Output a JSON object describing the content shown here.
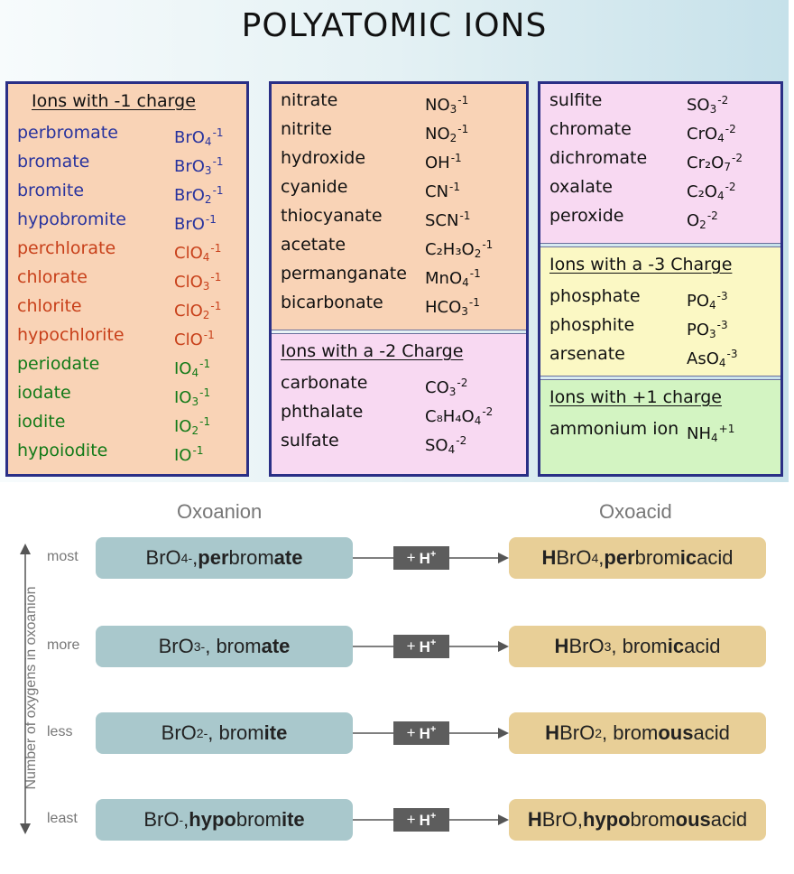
{
  "title": "POLYATOMIC IONS",
  "panels": [
    {
      "bg": "#f9d3b6",
      "sections": [
        {
          "header": "Ions with -1 charge",
          "ions": [
            {
              "name": "perbromate",
              "formula": [
                "BrO",
                "4",
                "-1"
              ],
              "color": "blue"
            },
            {
              "name": "bromate",
              "formula": [
                "BrO",
                "3",
                "-1"
              ],
              "color": "blue"
            },
            {
              "name": "bromite",
              "formula": [
                "BrO",
                "2",
                "-1"
              ],
              "color": "blue"
            },
            {
              "name": "hypobromite",
              "formula": [
                "BrO",
                "",
                "-1"
              ],
              "color": "blue"
            },
            {
              "name": "perchlorate",
              "formula": [
                "ClO",
                "4",
                "-1"
              ],
              "color": "orange"
            },
            {
              "name": "chlorate",
              "formula": [
                "ClO",
                "3",
                "-1"
              ],
              "color": "orange"
            },
            {
              "name": "chlorite",
              "formula": [
                "ClO",
                "2",
                "-1"
              ],
              "color": "orange"
            },
            {
              "name": "hypochlorite",
              "formula": [
                "ClO",
                "",
                "-1"
              ],
              "color": "orange"
            },
            {
              "name": "periodate",
              "formula": [
                "IO",
                "4",
                "-1"
              ],
              "color": "green"
            },
            {
              "name": "iodate",
              "formula": [
                "IO",
                "3",
                "-1"
              ],
              "color": "green"
            },
            {
              "name": "iodite",
              "formula": [
                "IO",
                "2",
                "-1"
              ],
              "color": "green"
            },
            {
              "name": "hypoiodite",
              "formula": [
                "IO",
                "",
                "-1"
              ],
              "color": "green"
            }
          ]
        }
      ]
    },
    {
      "bg_top": "#f9d3b6",
      "bg_bottom": "#f8d9f2",
      "sections": [
        {
          "header": "",
          "ions": [
            {
              "name": "nitrate",
              "formula": [
                "NO",
                "3",
                "-1"
              ],
              "color": "black"
            },
            {
              "name": "nitrite",
              "formula": [
                "NO",
                "2",
                "-1"
              ],
              "color": "black"
            },
            {
              "name": "hydroxide",
              "formula": [
                "OH",
                "",
                "-1"
              ],
              "color": "black"
            },
            {
              "name": "cyanide",
              "formula": [
                "CN",
                "",
                "-1"
              ],
              "color": "black"
            },
            {
              "name": "thiocyanate",
              "formula": [
                "SCN",
                "",
                "-1"
              ],
              "color": "black"
            },
            {
              "name": "acetate",
              "formula": [
                "C₂H₃O",
                "2",
                "-1"
              ],
              "color": "black"
            },
            {
              "name": "permanganate",
              "formula": [
                "MnO",
                "4",
                "-1"
              ],
              "color": "black"
            },
            {
              "name": "bicarbonate",
              "formula": [
                "HCO",
                "3",
                "-1"
              ],
              "color": "black"
            }
          ]
        },
        {
          "header": "Ions with a -2 Charge",
          "ions": [
            {
              "name": "carbonate",
              "formula": [
                "CO",
                "3",
                "-2"
              ],
              "color": "black"
            },
            {
              "name": "phthalate",
              "formula": [
                "C₈H₄O",
                "4",
                "-2"
              ],
              "color": "black"
            },
            {
              "name": "sulfate",
              "formula": [
                "SO",
                "4",
                "-2"
              ],
              "color": "black"
            }
          ]
        }
      ]
    },
    {
      "sections": [
        {
          "header": "",
          "bg": "#f8d9f2",
          "ions": [
            {
              "name": "sulfite",
              "formula": [
                "SO",
                "3",
                "-2"
              ],
              "color": "black"
            },
            {
              "name": "chromate",
              "formula": [
                "CrO",
                "4",
                "-2"
              ],
              "color": "black"
            },
            {
              "name": "dichromate",
              "formula": [
                "Cr₂O",
                "7",
                "-2"
              ],
              "color": "black"
            },
            {
              "name": "oxalate",
              "formula": [
                "C₂O",
                "4",
                "-2"
              ],
              "color": "black"
            },
            {
              "name": "peroxide",
              "formula": [
                "O",
                "2",
                "-2"
              ],
              "color": "black"
            }
          ]
        },
        {
          "header": "Ions with a -3 Charge",
          "bg": "#fbf8c4",
          "ions": [
            {
              "name": "phosphate",
              "formula": [
                "PO",
                "4",
                "-3"
              ],
              "color": "black"
            },
            {
              "name": "phosphite",
              "formula": [
                "PO",
                "3",
                "-3"
              ],
              "color": "black"
            },
            {
              "name": "arsenate",
              "formula": [
                "AsO",
                "4",
                "-3"
              ],
              "color": "black"
            }
          ]
        },
        {
          "header": "Ions with +1 charge",
          "bg": "#d3f4c2",
          "ions": [
            {
              "name": "ammonium ion",
              "formula": [
                "NH",
                "4",
                "+1"
              ],
              "color": "black"
            }
          ]
        }
      ]
    }
  ],
  "colors": {
    "blue": "#28339e",
    "orange": "#c8401a",
    "green": "#127a18",
    "black": "#111111",
    "panel_border": "#2a2f86"
  },
  "diagram": {
    "left_header": "Oxoanion",
    "right_header": "Oxoacid",
    "axis_label": "Number of oxygens in oxoanion",
    "proton_label": "+ H",
    "proton_sup": "+",
    "colors": {
      "anion": "#a9c8cc",
      "acid": "#e8cf97",
      "proton": "#5d5d5d",
      "line": "#555555"
    },
    "rows": [
      {
        "level": "most",
        "anion": [
          {
            "t": "BrO"
          },
          {
            "t": "4",
            "sub": true
          },
          {
            "t": "-",
            "sup": true
          },
          {
            "t": ", "
          },
          {
            "t": "per",
            "b": true
          },
          {
            "t": "brom"
          },
          {
            "t": "ate",
            "b": true
          }
        ],
        "acid": [
          {
            "t": "H",
            "b": true
          },
          {
            "t": "BrO"
          },
          {
            "t": "4",
            "sub": true
          },
          {
            "t": ", "
          },
          {
            "t": "per",
            "b": true
          },
          {
            "t": "brom"
          },
          {
            "t": "ic",
            "b": true
          },
          {
            "t": " acid"
          }
        ]
      },
      {
        "level": "more",
        "anion": [
          {
            "t": "BrO"
          },
          {
            "t": "3",
            "sub": true
          },
          {
            "t": "-",
            "sup": true
          },
          {
            "t": ", brom"
          },
          {
            "t": "ate",
            "b": true
          }
        ],
        "acid": [
          {
            "t": "H",
            "b": true
          },
          {
            "t": "BrO"
          },
          {
            "t": "3",
            "sub": true
          },
          {
            "t": ", brom"
          },
          {
            "t": "ic",
            "b": true
          },
          {
            "t": " acid"
          }
        ]
      },
      {
        "level": "less",
        "anion": [
          {
            "t": "BrO"
          },
          {
            "t": "2",
            "sub": true
          },
          {
            "t": "-",
            "sup": true
          },
          {
            "t": ", brom"
          },
          {
            "t": "ite",
            "b": true
          }
        ],
        "acid": [
          {
            "t": "H",
            "b": true
          },
          {
            "t": "BrO"
          },
          {
            "t": "2",
            "sub": true
          },
          {
            "t": ", brom"
          },
          {
            "t": "ous",
            "b": true
          },
          {
            "t": " acid"
          }
        ]
      },
      {
        "level": "least",
        "anion": [
          {
            "t": "BrO"
          },
          {
            "t": "-",
            "sup": true
          },
          {
            "t": ", "
          },
          {
            "t": "hypo",
            "b": true
          },
          {
            "t": "brom"
          },
          {
            "t": "ite",
            "b": true
          }
        ],
        "acid": [
          {
            "t": "H",
            "b": true
          },
          {
            "t": "BrO, "
          },
          {
            "t": "hypo",
            "b": true
          },
          {
            "t": "brom"
          },
          {
            "t": "ous",
            "b": true
          },
          {
            "t": " acid"
          }
        ]
      }
    ]
  }
}
